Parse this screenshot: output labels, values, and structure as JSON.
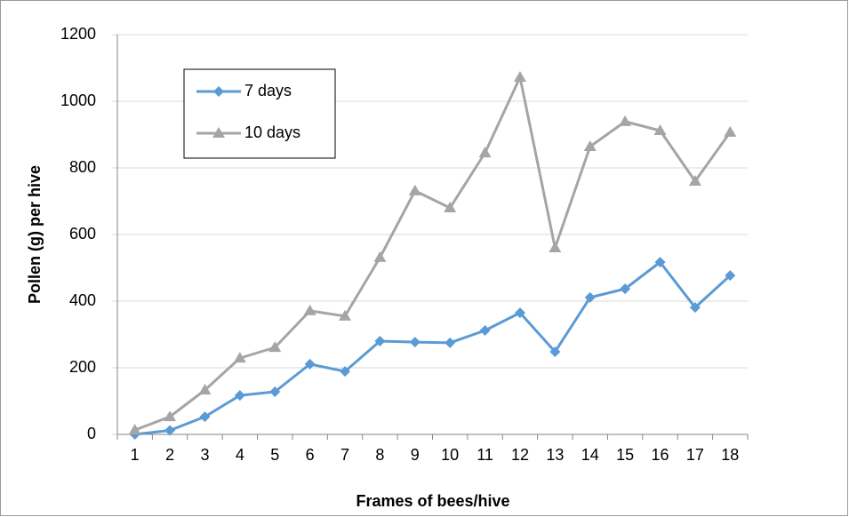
{
  "chart_data": {
    "type": "line",
    "x_label": "Frames of bees/hive",
    "y_label": "Pollen (g) per hive",
    "categories": [
      "1",
      "2",
      "3",
      "4",
      "5",
      "6",
      "7",
      "8",
      "9",
      "10",
      "11",
      "12",
      "13",
      "14",
      "15",
      "16",
      "17",
      "18"
    ],
    "series": [
      {
        "name": "7 days",
        "color": "#5b9bd5",
        "marker": "diamond",
        "values": [
          0,
          12,
          53,
          117,
          128,
          211,
          189,
          280,
          277,
          275,
          312,
          365,
          248,
          411,
          437,
          517,
          381,
          477
        ]
      },
      {
        "name": "10 days",
        "color": "#a5a5a5",
        "marker": "triangle",
        "values": [
          13,
          53,
          133,
          229,
          261,
          371,
          355,
          531,
          731,
          680,
          845,
          1072,
          560,
          864,
          939,
          912,
          760,
          907
        ]
      }
    ],
    "ylim": [
      0,
      1200
    ],
    "yticks": [
      0,
      200,
      400,
      600,
      800,
      1000,
      1200
    ],
    "grid": true,
    "legend": "upper-left"
  }
}
